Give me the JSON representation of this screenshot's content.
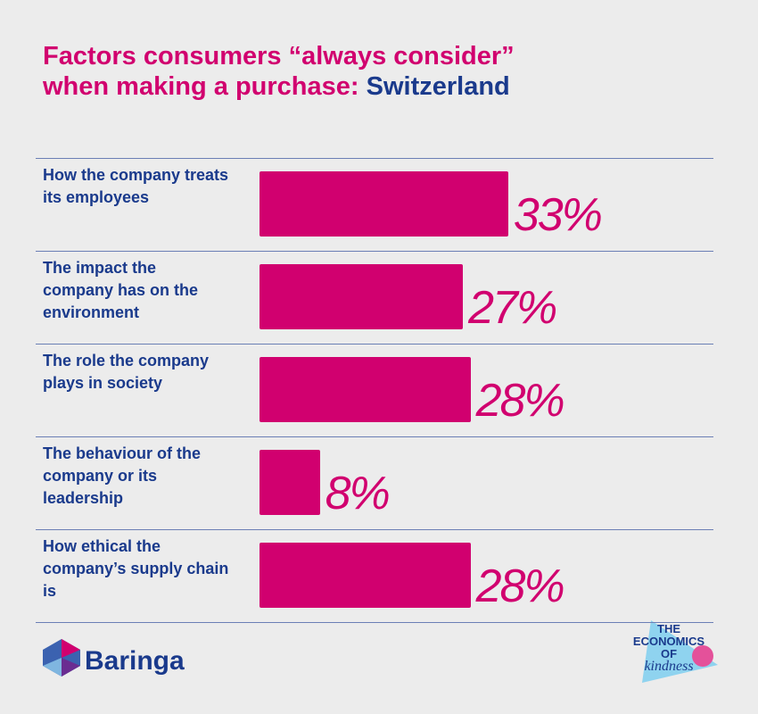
{
  "chart_data": {
    "type": "bar",
    "orientation": "horizontal",
    "title_lines": [
      "Factors consumers “always consider”",
      "when making a purchase:"
    ],
    "title_highlight": "Switzerland",
    "categories": [
      "How the company treats its employees",
      "The impact the company has on the environment",
      "The role the company plays in society",
      "The behaviour of the company or its leadership",
      "How ethical the company’s supply chain is"
    ],
    "values": [
      33,
      27,
      28,
      8,
      28
    ],
    "value_labels": [
      "33%",
      "27%",
      "28%",
      "8%",
      "28%"
    ],
    "color": "#d1006f"
  },
  "logos": {
    "brand": "Baringa",
    "badge": [
      "THE",
      "ECONOMICS",
      "OF",
      "kindness"
    ]
  }
}
